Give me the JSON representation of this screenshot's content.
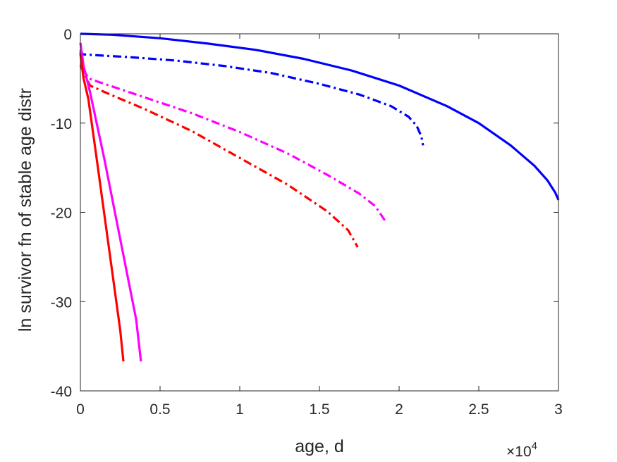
{
  "chart_data": {
    "type": "line",
    "xlabel": "age, d",
    "ylabel": "ln survivor fn of stable age distr",
    "x_exponent": {
      "base": "×10",
      "power": "4"
    },
    "xlim": [
      0,
      30000
    ],
    "ylim": [
      -40,
      0
    ],
    "xticks": [
      0,
      5000,
      10000,
      15000,
      20000,
      25000,
      30000
    ],
    "xtick_labels": [
      "0",
      "0.5",
      "1",
      "1.5",
      "2",
      "2.5",
      "3"
    ],
    "yticks": [
      0,
      -10,
      -20,
      -30,
      -40
    ],
    "ytick_labels": [
      "0",
      "-10",
      "-20",
      "-30",
      "-40"
    ],
    "grid": false,
    "series": [
      {
        "color": "#0000ff",
        "style": "solid",
        "x": [
          0,
          2000,
          5000,
          8000,
          11000,
          14000,
          17000,
          20000,
          23000,
          25000,
          27000,
          28500,
          29300,
          29800,
          30000
        ],
        "y": [
          0,
          -0.1,
          -0.5,
          -1.1,
          -1.8,
          -2.8,
          -4.1,
          -5.8,
          -8.1,
          -10.0,
          -12.5,
          -14.8,
          -16.4,
          -17.8,
          -18.6
        ]
      },
      {
        "color": "#0000ff",
        "style": "dashdot",
        "x": [
          0,
          150,
          1000,
          3000,
          6000,
          9000,
          12000,
          15000,
          17500,
          19500,
          20600,
          21100,
          21400,
          21500
        ],
        "y": [
          -1.8,
          -2.3,
          -2.4,
          -2.6,
          -3.0,
          -3.6,
          -4.4,
          -5.6,
          -6.8,
          -8.1,
          -9.3,
          -10.3,
          -11.5,
          -12.5
        ]
      },
      {
        "color": "#ff00ff",
        "style": "dashdot",
        "x": [
          0,
          200,
          500,
          2000,
          4000,
          7000,
          10000,
          13000,
          15500,
          17500,
          18500,
          19100
        ],
        "y": [
          -2.0,
          -4.0,
          -5.0,
          -5.9,
          -7.1,
          -8.9,
          -11.0,
          -13.4,
          -15.8,
          -17.9,
          -19.3,
          -20.9
        ]
      },
      {
        "color": "#ff0000",
        "style": "dashdot",
        "x": [
          0,
          200,
          600,
          2000,
          4000,
          7000,
          10000,
          13000,
          15500,
          16800,
          17400
        ],
        "y": [
          -3.5,
          -4.3,
          -5.8,
          -6.9,
          -8.4,
          -10.9,
          -13.9,
          -16.9,
          -19.9,
          -22.0,
          -23.9
        ]
      },
      {
        "color": "#ff00ff",
        "style": "solid",
        "x": [
          0,
          200,
          600,
          1500,
          2500,
          3500,
          3800
        ],
        "y": [
          -1.0,
          -3.6,
          -6.5,
          -14.0,
          -23.0,
          -32.0,
          -36.7
        ]
      },
      {
        "color": "#ff0000",
        "style": "solid",
        "x": [
          0,
          200,
          500,
          1000,
          1500,
          2000,
          2500,
          2700
        ],
        "y": [
          -2.2,
          -5.0,
          -7.3,
          -13.7,
          -20.2,
          -26.7,
          -33.2,
          -36.7
        ]
      }
    ]
  }
}
